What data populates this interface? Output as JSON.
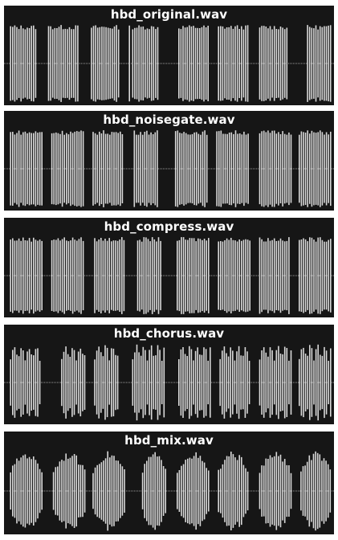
{
  "colors": {
    "panel_background": "#161616",
    "waveform": "#d9d9d9",
    "title_text": "#ffffff"
  },
  "panels": [
    {
      "title": "hbd_original.wav",
      "style": "original",
      "segments": [
        [
          0.02,
          0.1
        ],
        [
          0.135,
          0.225
        ],
        [
          0.265,
          0.35
        ],
        [
          0.38,
          0.385
        ],
        [
          0.39,
          0.47
        ],
        [
          0.53,
          0.62
        ],
        [
          0.65,
          0.74
        ],
        [
          0.775,
          0.86
        ],
        [
          0.92,
          0.99
        ]
      ]
    },
    {
      "title": "hbd_noisegate.wav",
      "style": "gated",
      "segments": [
        [
          0.02,
          0.115
        ],
        [
          0.145,
          0.245
        ],
        [
          0.27,
          0.36
        ],
        [
          0.395,
          0.47
        ],
        [
          0.52,
          0.615
        ],
        [
          0.645,
          0.745
        ],
        [
          0.775,
          0.87
        ],
        [
          0.895,
          0.99
        ]
      ]
    },
    {
      "title": "hbd_compress.wav",
      "style": "gated",
      "segments": [
        [
          0.02,
          0.115
        ],
        [
          0.145,
          0.245
        ],
        [
          0.275,
          0.365
        ],
        [
          0.405,
          0.48
        ],
        [
          0.525,
          0.62
        ],
        [
          0.65,
          0.745
        ],
        [
          0.775,
          0.865
        ],
        [
          0.895,
          0.99
        ]
      ]
    },
    {
      "title": "hbd_chorus.wav",
      "style": "chorus",
      "segments": [
        [
          0.02,
          0.11
        ],
        [
          0.175,
          0.25
        ],
        [
          0.275,
          0.35
        ],
        [
          0.39,
          0.49
        ],
        [
          0.53,
          0.63
        ],
        [
          0.655,
          0.745
        ],
        [
          0.775,
          0.87
        ],
        [
          0.895,
          0.99
        ]
      ]
    },
    {
      "title": "hbd_mix.wav",
      "style": "mix",
      "segments": [
        [
          0.02,
          0.115
        ],
        [
          0.15,
          0.245
        ],
        [
          0.27,
          0.365
        ],
        [
          0.42,
          0.49
        ],
        [
          0.525,
          0.62
        ],
        [
          0.65,
          0.74
        ],
        [
          0.775,
          0.87
        ],
        [
          0.9,
          0.99
        ]
      ]
    }
  ]
}
